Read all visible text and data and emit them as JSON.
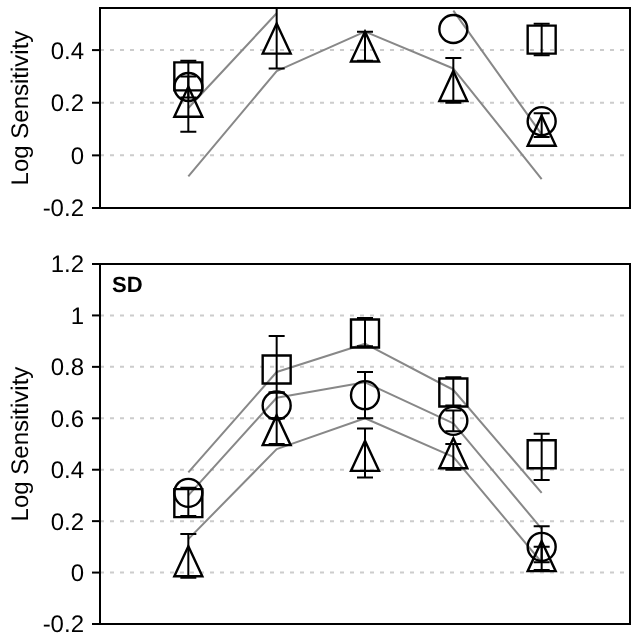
{
  "chart_data": [
    {
      "type": "scatter",
      "ylabel": "Log Sensitivity",
      "categories": [
        null,
        null,
        null,
        null,
        null
      ],
      "ylim": [
        -0.2,
        0.56
      ],
      "yticks": [
        -0.2,
        0,
        0.2,
        0.4
      ],
      "grid": "y",
      "tick_labels": "y",
      "series": [
        {
          "type": "line",
          "marker": "none",
          "color": "#888888",
          "values": [
            0.18,
            0.54,
            null,
            0.55,
            0.08
          ]
        },
        {
          "type": "line",
          "marker": "none",
          "color": "#888888",
          "values": [
            -0.08,
            0.32,
            0.47,
            0.33,
            -0.09
          ]
        },
        {
          "type": "scatter",
          "marker": "square",
          "color": "#000000",
          "values": [
            0.3,
            null,
            null,
            null,
            0.44
          ],
          "errors": [
            [
              0.22,
              0.36
            ],
            null,
            null,
            null,
            [
              0.38,
              0.5
            ]
          ]
        },
        {
          "type": "scatter",
          "marker": "circle",
          "color": "#000000",
          "values": [
            0.26,
            null,
            null,
            0.48,
            0.13
          ],
          "errors": [
            null,
            null,
            null,
            null,
            [
              0.07,
              0.16
            ]
          ]
        },
        {
          "type": "scatter",
          "marker": "triangle",
          "color": "#000000",
          "values": [
            0.2,
            0.44,
            0.41,
            0.26,
            0.09
          ],
          "errors": [
            [
              0.09,
              0.3
            ],
            [
              0.33,
              0.56
            ],
            [
              0.36,
              0.47
            ],
            [
              0.2,
              0.37
            ],
            null
          ]
        }
      ]
    },
    {
      "type": "scatter",
      "ylabel": "Log Sensitivity",
      "annotations": [
        "SD"
      ],
      "categories": [
        null,
        null,
        null,
        null,
        null
      ],
      "ylim": [
        -0.2,
        1.2
      ],
      "yticks": [
        -0.2,
        0,
        0.2,
        0.4,
        0.6,
        0.8,
        1,
        1.2
      ],
      "grid": "y",
      "tick_labels": "y",
      "series": [
        {
          "type": "line",
          "marker": "none",
          "color": "#888888",
          "values": [
            0.39,
            0.78,
            0.89,
            0.71,
            0.31
          ]
        },
        {
          "type": "line",
          "marker": "none",
          "color": "#888888",
          "values": [
            0.3,
            0.68,
            0.74,
            0.58,
            0.17
          ]
        },
        {
          "type": "line",
          "marker": "none",
          "color": "#888888",
          "values": [
            0.13,
            0.48,
            0.6,
            0.45,
            0.04
          ]
        },
        {
          "type": "scatter",
          "marker": "square",
          "color": "#000000",
          "values": [
            0.27,
            0.79,
            0.93,
            0.7,
            0.46
          ],
          "errors": [
            [
              0.22,
              0.33
            ],
            [
              0.7,
              0.92
            ],
            [
              0.88,
              0.99
            ],
            [
              0.65,
              0.76
            ],
            [
              0.36,
              0.54
            ]
          ]
        },
        {
          "type": "scatter",
          "marker": "circle",
          "color": "#000000",
          "values": [
            0.31,
            0.65,
            0.69,
            0.59,
            0.1
          ],
          "errors": [
            null,
            [
              0.6,
              0.7
            ],
            [
              0.6,
              0.78
            ],
            [
              0.55,
              0.63
            ],
            [
              0.04,
              0.18
            ]
          ]
        },
        {
          "type": "scatter",
          "marker": "triangle",
          "color": "#000000",
          "values": [
            0.04,
            0.55,
            0.45,
            0.46,
            0.06
          ],
          "errors": [
            [
              -0.02,
              0.15
            ],
            [
              0.5,
              0.6
            ],
            [
              0.37,
              0.56
            ],
            [
              0.4,
              0.5
            ],
            [
              0.01,
              0.1
            ]
          ]
        }
      ]
    }
  ]
}
